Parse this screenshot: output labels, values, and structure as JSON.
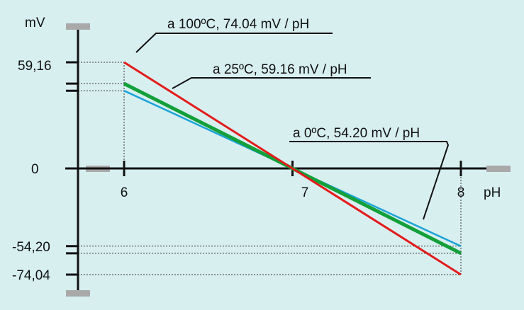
{
  "colors": {
    "background": "#d8eff0",
    "axis": "#111111",
    "arrow_tips": "#a9a9a9",
    "t100": "#e31b1b",
    "t25": "#13a03a",
    "t0": "#1ba3d6"
  },
  "chart_data": {
    "type": "line",
    "xlabel": "pH",
    "ylabel": "mV",
    "x_ticks": [
      "6",
      "7",
      "8"
    ],
    "y_tick_labels": [
      "59,16",
      "0",
      "-54,20",
      "-74,04"
    ],
    "xlim": [
      5.7,
      8.2
    ],
    "ylim": [
      -78,
      80
    ],
    "grid": false,
    "series": [
      {
        "name": "a 100ºC, 74.04 mV / pH",
        "color": "#e31b1b",
        "x": [
          6,
          8
        ],
        "y": [
          74.04,
          -74.04
        ]
      },
      {
        "name": "a 25ºC, 59.16 mV / pH",
        "color": "#13a03a",
        "x": [
          6,
          8
        ],
        "y": [
          59.16,
          -59.16
        ]
      },
      {
        "name": "a 0ºC, 54.20 mV / pH",
        "color": "#1ba3d6",
        "x": [
          6,
          8
        ],
        "y": [
          54.2,
          -54.2
        ]
      }
    ]
  }
}
